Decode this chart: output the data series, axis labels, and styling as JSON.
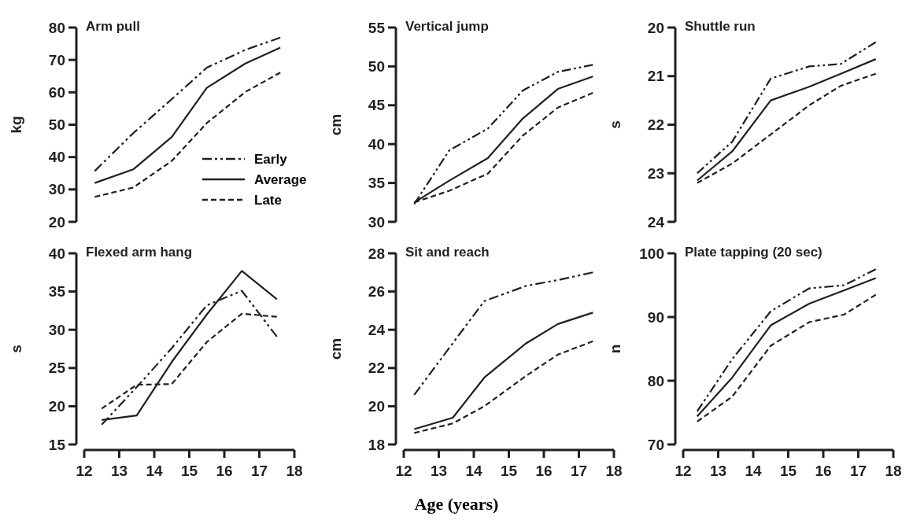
{
  "chart_data": [
    {
      "type": "line",
      "title": "Arm pull",
      "ylabel": "kg",
      "x": [
        12.3,
        13.4,
        14.5,
        15.5,
        16.6,
        17.6
      ],
      "xlim": [
        12,
        18
      ],
      "ylim": [
        20,
        80
      ],
      "yticks": [
        20,
        30,
        40,
        50,
        60,
        70,
        80
      ],
      "tick_labels": "y",
      "legend": "bottom right",
      "series": [
        {
          "name": "Early",
          "color": "#231f20",
          "line_style": "dashdot",
          "values": [
            35.7,
            47.4,
            57.9,
            67.6,
            73.1,
            76.9
          ]
        },
        {
          "name": "Average",
          "color": "#231f20",
          "line_style": "solid",
          "values": [
            32,
            36.2,
            46.2,
            61.4,
            68.9,
            73.8
          ]
        },
        {
          "name": "Late",
          "color": "#231f20",
          "line_style": "dashed",
          "values": [
            27.7,
            30.6,
            38.8,
            50.5,
            60.1,
            66.1
          ]
        }
      ]
    },
    {
      "type": "line",
      "title": "Vertical jump",
      "ylabel": "cm",
      "x": [
        12.3,
        13.3,
        14.4,
        15.4,
        16.4,
        17.4
      ],
      "xlim": [
        12,
        18
      ],
      "ylim": [
        30,
        55
      ],
      "yticks": [
        30,
        35,
        40,
        45,
        50,
        55
      ],
      "tick_labels": "y",
      "series": [
        {
          "color": "#231f20",
          "line_style": "dashdot",
          "values": [
            32.3,
            39.2,
            42,
            46.9,
            49.3,
            50.2
          ]
        },
        {
          "color": "#231f20",
          "line_style": "solid",
          "values": [
            32.5,
            35.3,
            38.2,
            43.3,
            47.1,
            48.7
          ]
        },
        {
          "color": "#231f20",
          "line_style": "dashed",
          "values": [
            32.5,
            34,
            36.2,
            41.1,
            44.7,
            46.6
          ]
        }
      ]
    },
    {
      "type": "line",
      "title": "Shuttle run",
      "ylabel": "s",
      "x": [
        12.4,
        13.4,
        14.5,
        15.6,
        16.5,
        17.5
      ],
      "xlim": [
        12,
        18
      ],
      "ylim": [
        24,
        20
      ],
      "yticks": [
        20,
        21,
        22,
        23,
        24
      ],
      "tick_labels": "y",
      "series": [
        {
          "color": "#231f20",
          "line_style": "dashdot",
          "values": [
            23,
            22.35,
            21.05,
            20.8,
            20.75,
            20.3
          ]
        },
        {
          "color": "#231f20",
          "line_style": "solid",
          "values": [
            23.15,
            22.55,
            21.5,
            21.22,
            20.95,
            20.65
          ]
        },
        {
          "color": "#231f20",
          "line_style": "dashed",
          "values": [
            23.2,
            22.8,
            22.2,
            21.6,
            21.2,
            20.95
          ]
        }
      ]
    },
    {
      "type": "line",
      "title": "Flexed arm hang",
      "ylabel": "s",
      "x": [
        12.5,
        13.5,
        14.5,
        15.5,
        16.5,
        17.5
      ],
      "xlim": [
        12,
        18
      ],
      "xticks": [
        12,
        13,
        14,
        15,
        16,
        17,
        18
      ],
      "ylim": [
        15,
        40
      ],
      "yticks": [
        15,
        20,
        25,
        30,
        35,
        40
      ],
      "series": [
        {
          "color": "#231f20",
          "line_style": "dashdot",
          "values": [
            17.6,
            22.5,
            27.6,
            33.2,
            35.1,
            29.1
          ]
        },
        {
          "color": "#231f20",
          "line_style": "solid",
          "values": [
            18.2,
            18.8,
            25.8,
            32,
            37.7,
            34
          ]
        },
        {
          "color": "#231f20",
          "line_style": "dashed",
          "values": [
            19.7,
            22.8,
            22.9,
            28.4,
            32.1,
            31.7
          ]
        }
      ]
    },
    {
      "type": "line",
      "title": "Sit and reach",
      "ylabel": "cm",
      "xlabel": "Age (years)",
      "x": [
        12.3,
        13.4,
        14.3,
        15.5,
        16.4,
        17.4
      ],
      "xlim": [
        12,
        18
      ],
      "xticks": [
        12,
        13,
        14,
        15,
        16,
        17,
        18
      ],
      "ylim": [
        18,
        28
      ],
      "yticks": [
        18,
        20,
        22,
        24,
        26,
        28
      ],
      "series": [
        {
          "color": "#231f20",
          "line_style": "dashdot",
          "values": [
            20.6,
            23.3,
            25.5,
            26.3,
            26.6,
            27
          ]
        },
        {
          "color": "#231f20",
          "line_style": "solid",
          "values": [
            18.8,
            19.4,
            21.5,
            23.3,
            24.3,
            24.9
          ]
        },
        {
          "color": "#231f20",
          "line_style": "dashed",
          "values": [
            18.6,
            19.1,
            20,
            21.6,
            22.7,
            23.4
          ]
        }
      ]
    },
    {
      "type": "line",
      "title": "Plate tapping (20 sec)",
      "ylabel": "n",
      "x": [
        12.4,
        13.4,
        14.5,
        15.6,
        16.6,
        17.5
      ],
      "xlim": [
        12,
        18
      ],
      "xticks": [
        12,
        13,
        14,
        15,
        16,
        17,
        18
      ],
      "ylim": [
        70,
        100
      ],
      "yticks": [
        70,
        80,
        90,
        100
      ],
      "series": [
        {
          "color": "#231f20",
          "line_style": "dashdot",
          "values": [
            75.2,
            83.4,
            90.9,
            94.5,
            95,
            97.5
          ]
        },
        {
          "color": "#231f20",
          "line_style": "solid",
          "values": [
            74.4,
            80.5,
            88.7,
            92.1,
            94.2,
            96.1
          ]
        },
        {
          "color": "#231f20",
          "line_style": "dashed",
          "values": [
            73.6,
            77.5,
            85.5,
            89.2,
            90.4,
            93.5
          ]
        }
      ]
    }
  ]
}
